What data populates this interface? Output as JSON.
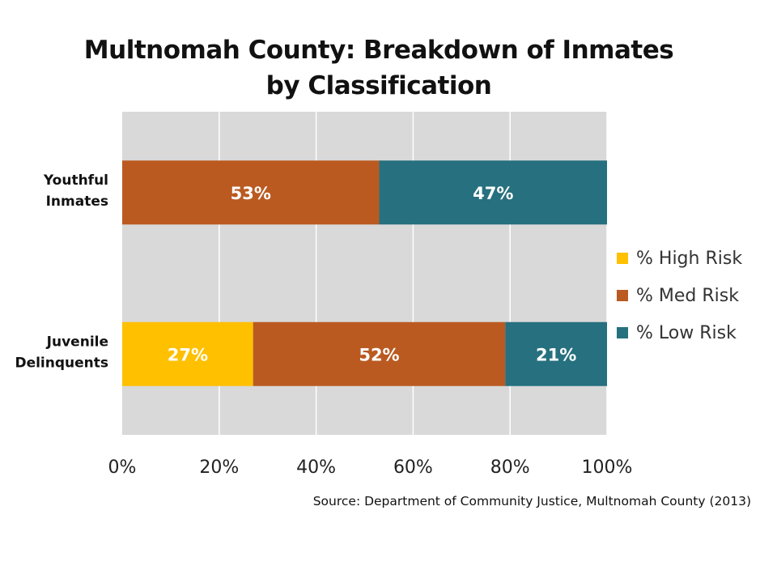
{
  "chart_data": {
    "type": "bar",
    "orientation": "horizontal",
    "stacked": true,
    "title": "Multnomah County: Breakdown of Inmates by Classification",
    "categories": [
      "Youthful Inmates",
      "Juvenile Delinquents"
    ],
    "category_lines": [
      [
        "Youthful",
        "Inmates"
      ],
      [
        "Juvenile",
        "Delinquents"
      ]
    ],
    "series": [
      {
        "name": "% High Risk",
        "color": "#FFC000",
        "values": [
          0,
          27
        ],
        "labels": [
          "",
          "27%"
        ]
      },
      {
        "name": "% Med Risk",
        "color": "#BA5A21",
        "values": [
          53,
          52
        ],
        "labels": [
          "53%",
          "52%"
        ]
      },
      {
        "name": "% Low Risk",
        "color": "#26707F",
        "values": [
          47,
          21
        ],
        "labels": [
          "47%",
          "21%"
        ]
      }
    ],
    "xlim": [
      0,
      100
    ],
    "xticks": [
      0,
      20,
      40,
      60,
      80,
      100
    ],
    "xtick_labels": [
      "0%",
      "20%",
      "40%",
      "60%",
      "80%",
      "100%"
    ],
    "grid": true,
    "plot_background": "#D9D9D9",
    "legend_position": "right"
  },
  "source": "Source: Department of Community Justice,  Multnomah County (2013)"
}
